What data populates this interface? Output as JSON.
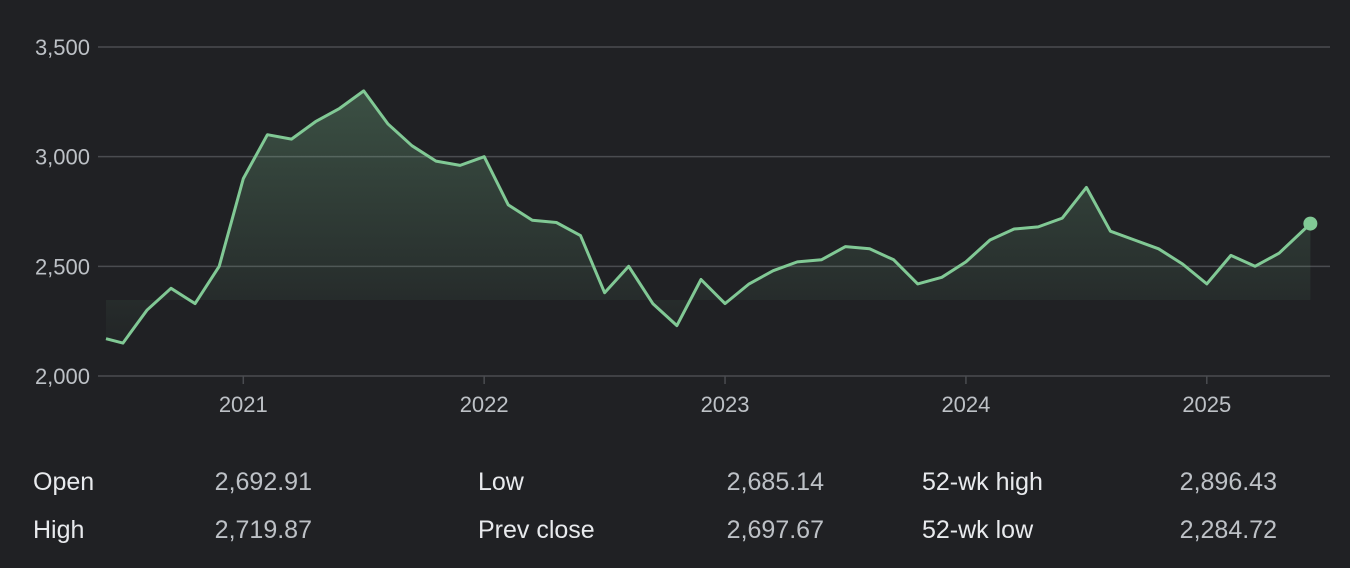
{
  "chart_data": {
    "type": "area",
    "ylim": [
      2000,
      3600
    ],
    "y_ticks": [
      "3,500",
      "3,000",
      "2,500",
      "2,000"
    ],
    "y_tick_values": [
      3500,
      3000,
      2500,
      2000
    ],
    "x_ticks": [
      "2021",
      "2022",
      "2023",
      "2024",
      "2025"
    ],
    "x_tick_values": [
      2021,
      2022,
      2023,
      2024,
      2025
    ],
    "xlim": [
      2020.43,
      2025.47
    ],
    "line_color": "#81c995",
    "grid": true,
    "series": [
      {
        "x": [
          2020.43,
          2020.5,
          2020.6,
          2020.7,
          2020.8,
          2020.9,
          2021.0,
          2021.1,
          2021.2,
          2021.3,
          2021.4,
          2021.5,
          2021.6,
          2021.7,
          2021.8,
          2021.9,
          2022.0,
          2022.1,
          2022.2,
          2022.3,
          2022.4,
          2022.5,
          2022.6,
          2022.7,
          2022.8,
          2022.9,
          2023.0,
          2023.1,
          2023.2,
          2023.3,
          2023.4,
          2023.5,
          2023.6,
          2023.7,
          2023.8,
          2023.9,
          2024.0,
          2024.1,
          2024.2,
          2024.3,
          2024.4,
          2024.5,
          2024.6,
          2024.7,
          2024.8,
          2024.9,
          2025.0,
          2025.1,
          2025.2,
          2025.3,
          2025.43
        ],
        "values": [
          2170,
          2150,
          2300,
          2400,
          2330,
          2500,
          2900,
          3100,
          3080,
          3160,
          3220,
          3300,
          3150,
          3050,
          2980,
          2960,
          3000,
          2780,
          2710,
          2700,
          2640,
          2380,
          2500,
          2330,
          2230,
          2440,
          2330,
          2420,
          2480,
          2520,
          2530,
          2590,
          2580,
          2530,
          2420,
          2450,
          2520,
          2620,
          2670,
          2680,
          2720,
          2860,
          2660,
          2620,
          2580,
          2510,
          2420,
          2550,
          2500,
          2560,
          2695
        ]
      }
    ]
  },
  "stats": {
    "rows": [
      [
        {
          "label": "Open",
          "value": "2,692.91"
        },
        {
          "label": "Low",
          "value": "2,685.14"
        },
        {
          "label": "52-wk high",
          "value": "2,896.43"
        }
      ],
      [
        {
          "label": "High",
          "value": "2,719.87"
        },
        {
          "label": "Prev close",
          "value": "2,697.67"
        },
        {
          "label": "52-wk low",
          "value": "2,284.72"
        }
      ]
    ]
  }
}
